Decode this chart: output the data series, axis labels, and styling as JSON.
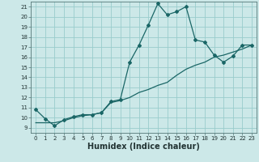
{
  "title": "",
  "xlabel": "Humidex (Indice chaleur)",
  "background_color": "#cce8e8",
  "line_color": "#1a6666",
  "grid_color": "#99cccc",
  "xlim": [
    -0.5,
    23.5
  ],
  "ylim": [
    8.5,
    21.5
  ],
  "xticks": [
    0,
    1,
    2,
    3,
    4,
    5,
    6,
    7,
    8,
    9,
    10,
    11,
    12,
    13,
    14,
    15,
    16,
    17,
    18,
    19,
    20,
    21,
    22,
    23
  ],
  "yticks": [
    9,
    10,
    11,
    12,
    13,
    14,
    15,
    16,
    17,
    18,
    19,
    20,
    21
  ],
  "curve1_x": [
    0,
    1,
    2,
    3,
    4,
    5,
    6,
    7,
    8,
    9,
    10,
    11,
    12,
    13,
    14,
    15,
    16,
    17,
    18,
    19,
    20,
    21,
    22,
    23
  ],
  "curve1_y": [
    10.8,
    9.9,
    9.2,
    9.8,
    10.1,
    10.3,
    10.3,
    10.5,
    11.6,
    11.8,
    15.5,
    17.2,
    19.2,
    21.3,
    20.2,
    20.5,
    21.0,
    17.7,
    17.5,
    16.2,
    15.5,
    16.1,
    17.2,
    17.2
  ],
  "curve2_x": [
    0,
    1,
    2,
    3,
    4,
    5,
    6,
    7,
    8,
    9,
    10,
    11,
    12,
    13,
    14,
    15,
    16,
    17,
    18,
    19,
    20,
    21,
    22,
    23
  ],
  "curve2_y": [
    9.5,
    9.5,
    9.5,
    9.7,
    10.0,
    10.2,
    10.3,
    10.5,
    11.5,
    11.7,
    12.0,
    12.5,
    12.8,
    13.2,
    13.5,
    14.2,
    14.8,
    15.2,
    15.5,
    16.0,
    16.2,
    16.5,
    16.8,
    17.2
  ],
  "xlabel_fontsize": 7,
  "tick_fontsize": 5,
  "marker_size": 2.0,
  "linewidth": 0.9
}
